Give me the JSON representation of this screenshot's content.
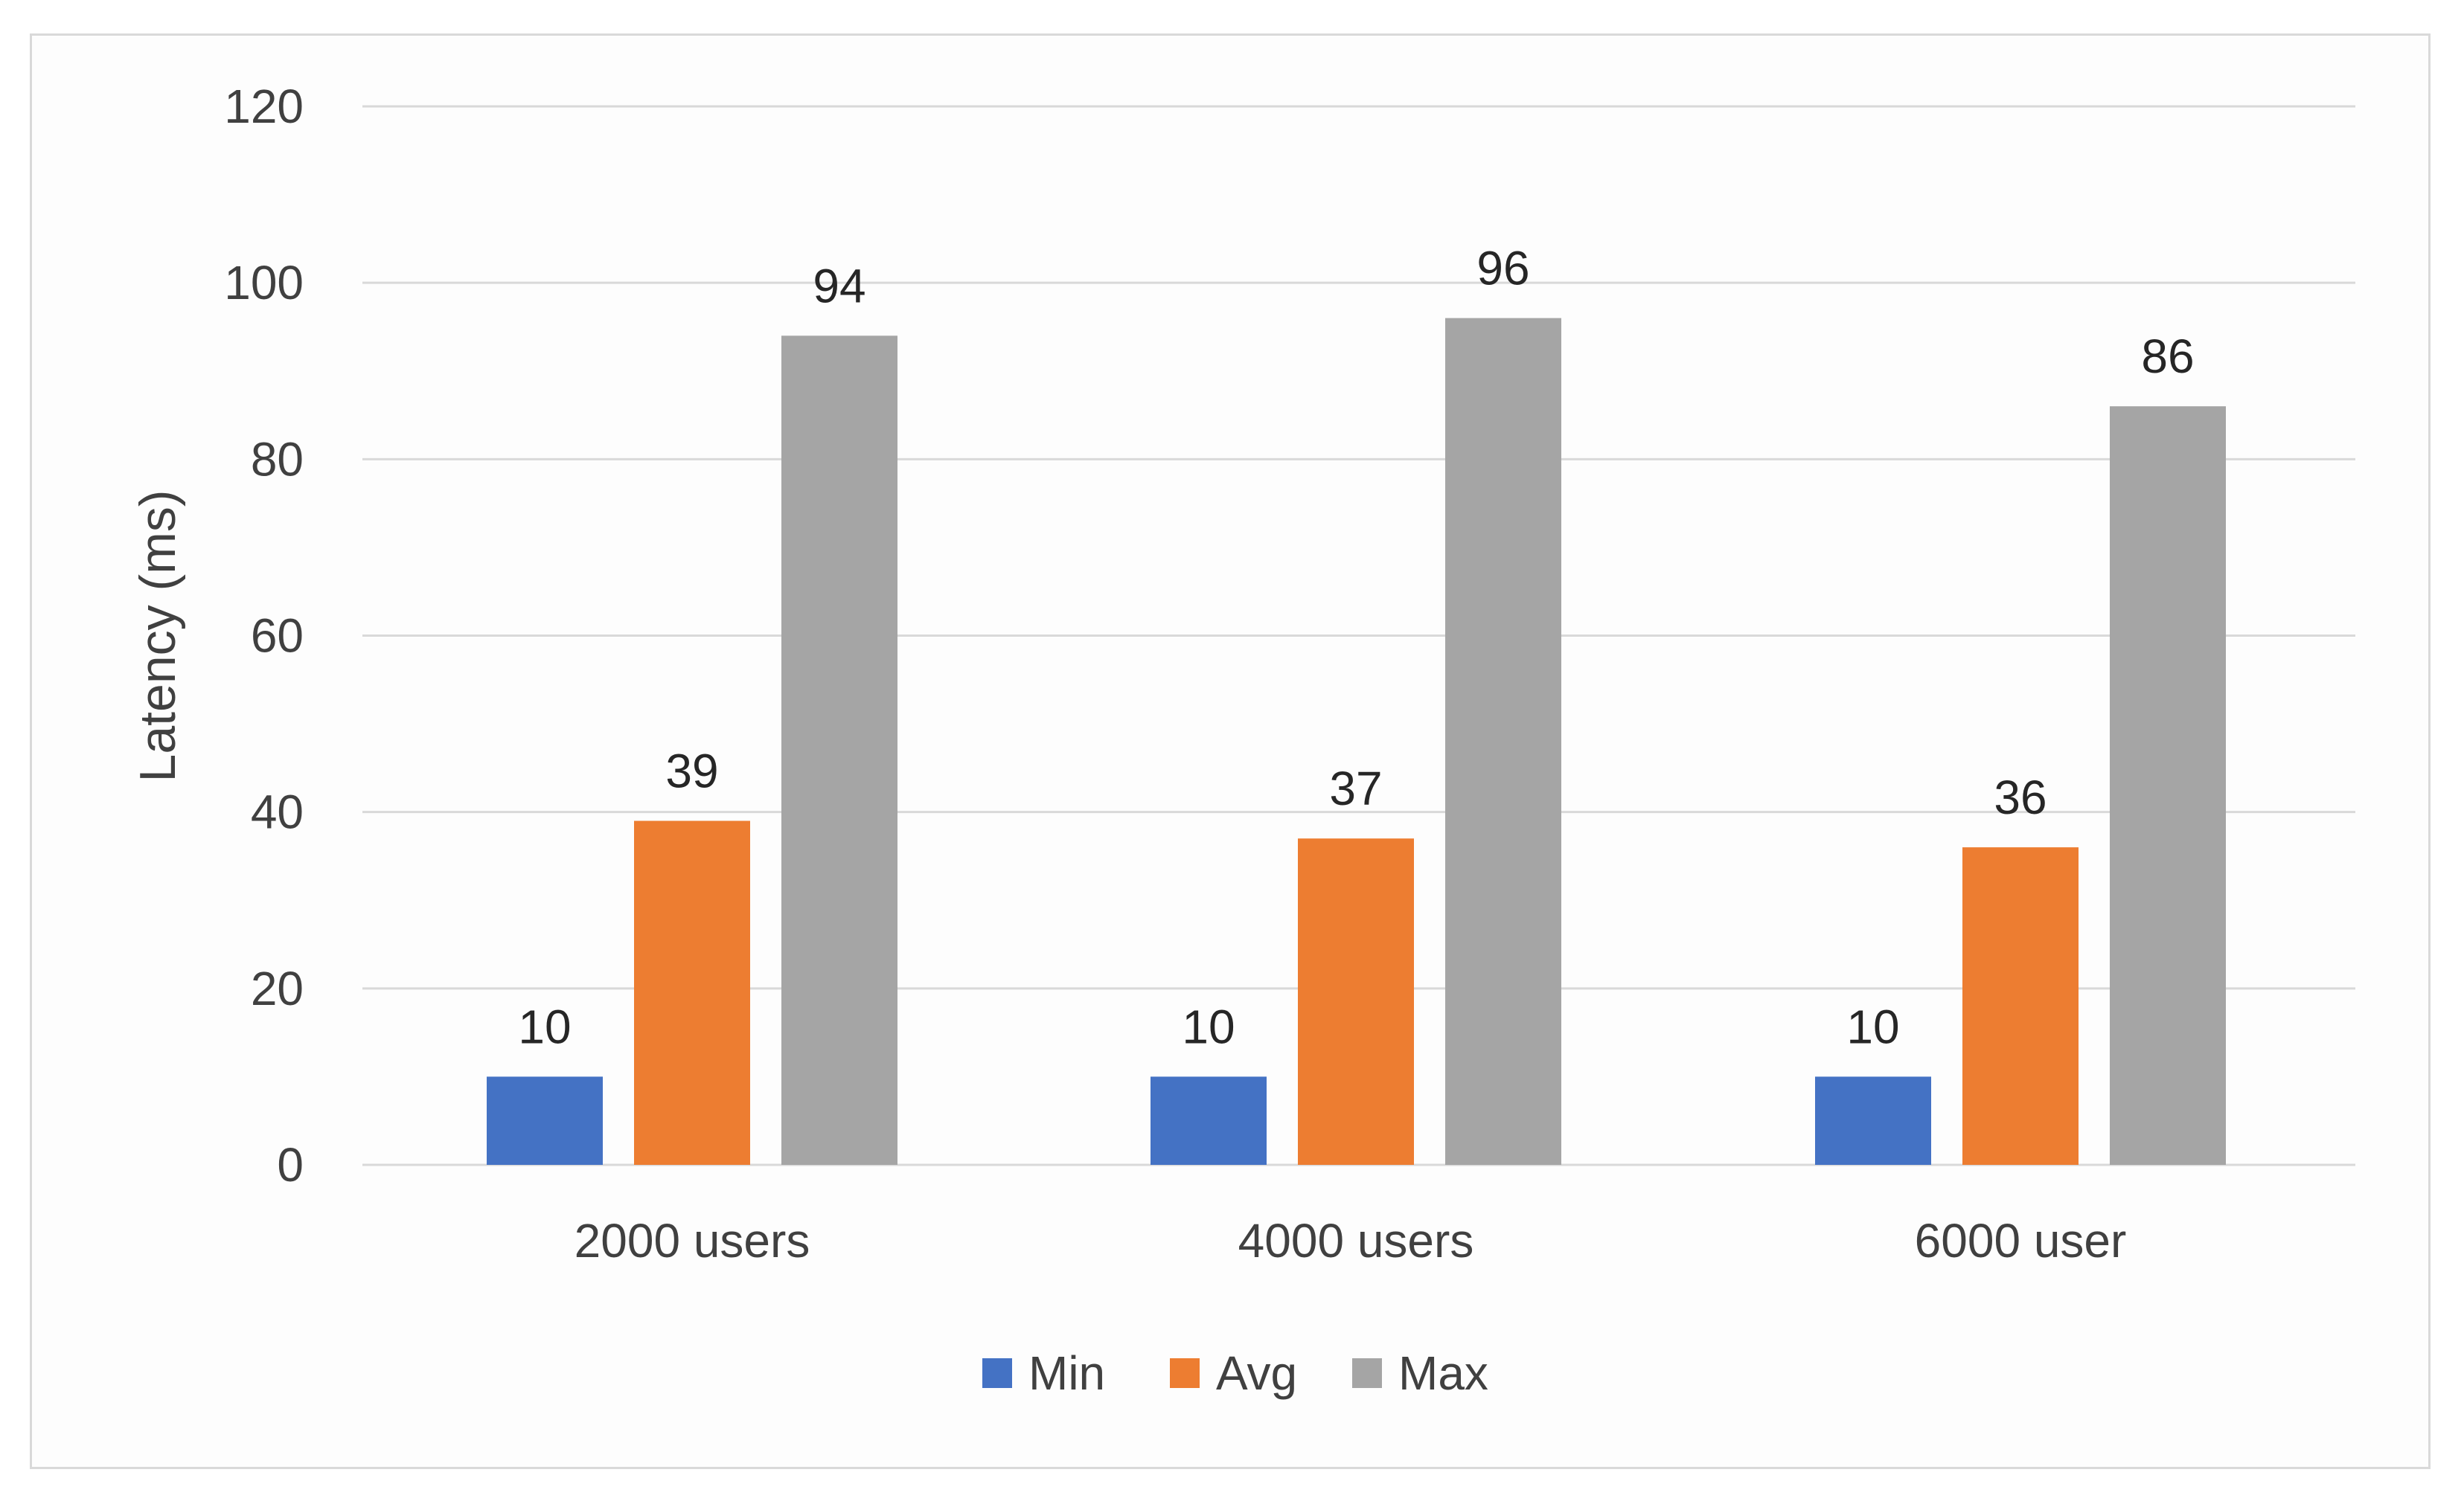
{
  "chart_data": {
    "type": "bar",
    "title": "",
    "xlabel": "",
    "ylabel": "Latency (ms)",
    "ylim": [
      0,
      120
    ],
    "yticks": [
      0,
      20,
      40,
      60,
      80,
      100,
      120
    ],
    "grid": true,
    "legend_position": "bottom",
    "categories": [
      "2000 users",
      "4000 users",
      "6000 user"
    ],
    "series": [
      {
        "name": "Min",
        "color": "#4472c4",
        "values": [
          10,
          10,
          10
        ]
      },
      {
        "name": "Avg",
        "color": "#ed7d31",
        "values": [
          39,
          37,
          36
        ]
      },
      {
        "name": "Max",
        "color": "#a5a5a5",
        "values": [
          94,
          96,
          86
        ]
      }
    ]
  }
}
